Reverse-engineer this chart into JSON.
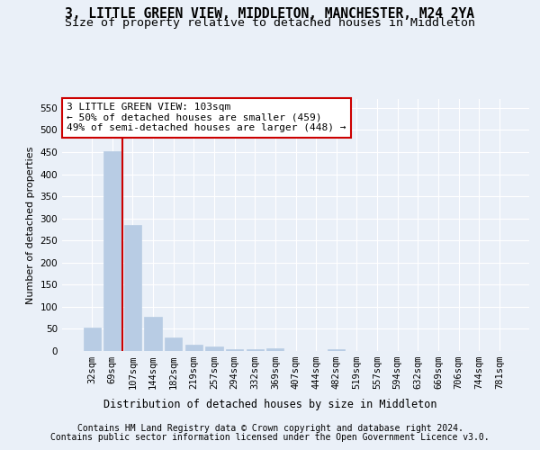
{
  "title": "3, LITTLE GREEN VIEW, MIDDLETON, MANCHESTER, M24 2YA",
  "subtitle": "Size of property relative to detached houses in Middleton",
  "xlabel": "Distribution of detached houses by size in Middleton",
  "ylabel": "Number of detached properties",
  "bar_color": "#b8cce4",
  "bar_edgecolor": "#b8cce4",
  "vline_color": "#cc0000",
  "vline_x_index": 2,
  "categories": [
    "32sqm",
    "69sqm",
    "107sqm",
    "144sqm",
    "182sqm",
    "219sqm",
    "257sqm",
    "294sqm",
    "332sqm",
    "369sqm",
    "407sqm",
    "444sqm",
    "482sqm",
    "519sqm",
    "557sqm",
    "594sqm",
    "632sqm",
    "669sqm",
    "706sqm",
    "744sqm",
    "781sqm"
  ],
  "values": [
    53,
    452,
    284,
    78,
    30,
    15,
    10,
    5,
    5,
    6,
    0,
    0,
    5,
    0,
    0,
    0,
    0,
    0,
    0,
    0,
    0
  ],
  "ylim": [
    0,
    570
  ],
  "yticks": [
    0,
    50,
    100,
    150,
    200,
    250,
    300,
    350,
    400,
    450,
    500,
    550
  ],
  "annotation_text": "3 LITTLE GREEN VIEW: 103sqm\n← 50% of detached houses are smaller (459)\n49% of semi-detached houses are larger (448) →",
  "bg_color": "#eaf0f8",
  "plot_bg_color": "#eaf0f8",
  "footer_line1": "Contains HM Land Registry data © Crown copyright and database right 2024.",
  "footer_line2": "Contains public sector information licensed under the Open Government Licence v3.0.",
  "title_fontsize": 10.5,
  "subtitle_fontsize": 9.5,
  "xlabel_fontsize": 8.5,
  "ylabel_fontsize": 8,
  "tick_fontsize": 7.5,
  "annotation_fontsize": 8,
  "footer_fontsize": 7
}
